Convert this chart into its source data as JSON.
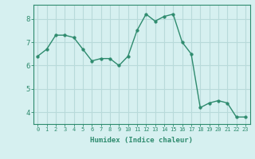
{
  "x": [
    0,
    1,
    2,
    3,
    4,
    5,
    6,
    7,
    8,
    9,
    10,
    11,
    12,
    13,
    14,
    15,
    16,
    17,
    18,
    19,
    20,
    21,
    22,
    23
  ],
  "y": [
    6.4,
    6.7,
    7.3,
    7.3,
    7.2,
    6.7,
    6.2,
    6.3,
    6.3,
    6.0,
    6.4,
    7.5,
    8.2,
    7.9,
    8.1,
    8.2,
    7.0,
    6.5,
    4.2,
    4.4,
    4.5,
    4.4,
    3.8,
    3.8
  ],
  "xlabel": "Humidex (Indice chaleur)",
  "xlim": [
    -0.5,
    23.5
  ],
  "ylim": [
    3.5,
    8.6
  ],
  "yticks": [
    4,
    5,
    6,
    7,
    8
  ],
  "xticks": [
    0,
    1,
    2,
    3,
    4,
    5,
    6,
    7,
    8,
    9,
    10,
    11,
    12,
    13,
    14,
    15,
    16,
    17,
    18,
    19,
    20,
    21,
    22,
    23
  ],
  "line_color": "#2e8b6e",
  "marker_color": "#2e8b6e",
  "bg_color": "#d6f0f0",
  "grid_color": "#b8dada",
  "axis_color": "#2e8b6e",
  "label_color": "#2e8b6e",
  "tick_color": "#2e8b6e"
}
